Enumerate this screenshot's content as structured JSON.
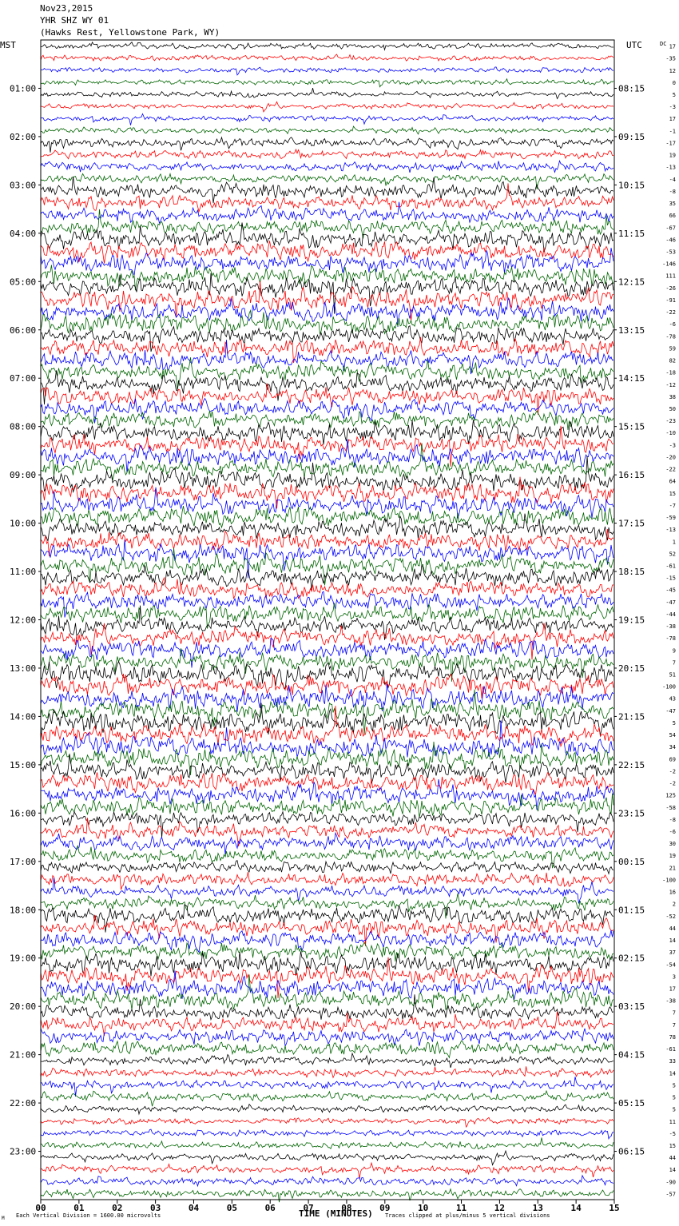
{
  "header": {
    "date": "Nov23,2015",
    "station": "YHR SHZ WY 01",
    "location": "(Hawks Rest, Yellowstone Park, WY)"
  },
  "chart_data": {
    "type": "line",
    "title": "Nov23,2015",
    "left_axis_label": "MST",
    "right_axis_label": "UTC",
    "dc_label": "DC",
    "xlabel": "TIME (MINUTES)",
    "xticks": [
      "00",
      "01",
      "02",
      "03",
      "04",
      "05",
      "06",
      "07",
      "08",
      "09",
      "10",
      "11",
      "12",
      "13",
      "14",
      "15"
    ],
    "xlim": [
      0,
      15
    ],
    "mst_labels": [
      "01:00",
      "02:00",
      "03:00",
      "04:00",
      "05:00",
      "06:00",
      "07:00",
      "08:00",
      "09:00",
      "10:00",
      "11:00",
      "12:00",
      "13:00",
      "14:00",
      "15:00",
      "16:00",
      "17:00",
      "18:00",
      "19:00",
      "20:00",
      "21:00",
      "22:00",
      "23:00"
    ],
    "utc_labels": [
      "08:15",
      "09:15",
      "10:15",
      "11:15",
      "12:15",
      "13:15",
      "14:15",
      "15:15",
      "16:15",
      "17:15",
      "18:15",
      "19:15",
      "20:15",
      "21:15",
      "22:15",
      "23:15",
      "00:15",
      "01:15",
      "02:15",
      "03:15",
      "04:15",
      "05:15",
      "06:15"
    ],
    "traces_per_hour": 4,
    "trace_count": 96,
    "trace_colors": [
      "#000000",
      "#ff0000",
      "#0000ff",
      "#006400"
    ],
    "dc_offsets": [
      17,
      -35,
      12,
      0,
      5,
      -3,
      17,
      -1,
      -17,
      19,
      -13,
      -4,
      -8,
      35,
      66,
      -67,
      -46,
      -53,
      -146,
      111,
      -26,
      -91,
      -22,
      -6,
      -78,
      59,
      82,
      -18,
      -12,
      38,
      50,
      -23,
      -10,
      -3,
      -20,
      -22,
      64,
      15,
      -7,
      -59,
      -13,
      1,
      52,
      -61,
      -15,
      -45,
      -47,
      -44,
      -38,
      -78,
      9,
      7,
      51,
      -100,
      43,
      -47,
      5,
      54,
      34,
      69,
      -2,
      -2,
      125,
      -58,
      -8,
      -6,
      30,
      19,
      21,
      -100,
      16,
      2,
      -52,
      44,
      14,
      37,
      -54,
      3,
      17,
      -38,
      7,
      7,
      78,
      -61,
      33,
      14,
      5,
      5,
      5,
      11,
      -5,
      15,
      44,
      14,
      -90,
      -57
    ],
    "amplitude_profile": [
      1,
      1,
      1,
      1,
      1,
      1,
      1,
      1,
      1.6,
      1.6,
      1.6,
      1.6,
      2.6,
      2.6,
      2.6,
      2.6,
      3.4,
      3.4,
      3.4,
      3.4,
      3.6,
      3.6,
      3.6,
      3.6,
      3.2,
      3.2,
      3.2,
      3.2,
      3,
      3,
      3,
      3,
      3.4,
      3.4,
      3.4,
      3.4,
      3.6,
      3.6,
      3.6,
      3.6,
      3.4,
      3.4,
      3.4,
      3.4,
      3.2,
      3.2,
      3.2,
      3.2,
      3.2,
      3.2,
      3.2,
      3.2,
      3.8,
      3.8,
      3.8,
      3.8,
      3.8,
      3.8,
      3.8,
      3.8,
      3.4,
      3.4,
      3.4,
      3.4,
      2.6,
      2.6,
      2.6,
      2.6,
      2.2,
      2.2,
      2.2,
      2.2,
      3,
      3,
      3,
      3,
      3.4,
      3.4,
      3.4,
      3.4,
      2.6,
      2.6,
      2.6,
      2.6,
      1.6,
      1.6,
      1.6,
      1.6,
      1.2,
      1.2,
      1.2,
      1.2,
      1.4,
      1.4,
      1.4,
      1.4
    ],
    "footer_left": "Each Vertical Division = 1600.00 microvolts",
    "footer_right": "Traces clipped at plus/minus 5 vertical divisions",
    "corner_mark": "M"
  }
}
